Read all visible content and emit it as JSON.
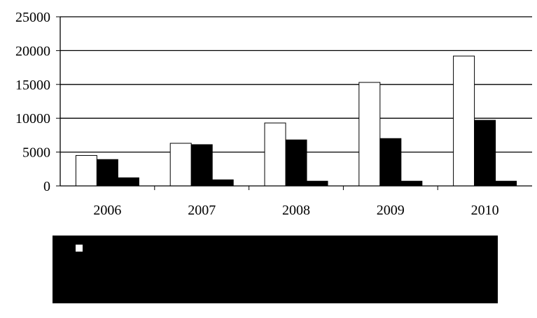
{
  "chart_data": {
    "type": "bar",
    "categories": [
      "2006",
      "2007",
      "2008",
      "2009",
      "2010"
    ],
    "series": [
      {
        "values": [
          4500,
          6300,
          9300,
          15300,
          19200
        ],
        "color": "#ffffff"
      },
      {
        "values": [
          3900,
          6100,
          6800,
          7000,
          9700
        ],
        "color": "#000000"
      },
      {
        "values": [
          1200,
          900,
          700,
          700,
          700
        ],
        "color": "#000000"
      }
    ],
    "ylim": [
      0,
      25000
    ],
    "yticks": [
      0,
      5000,
      10000,
      15000,
      20000,
      25000
    ],
    "grid": true,
    "legend": "bottom"
  }
}
